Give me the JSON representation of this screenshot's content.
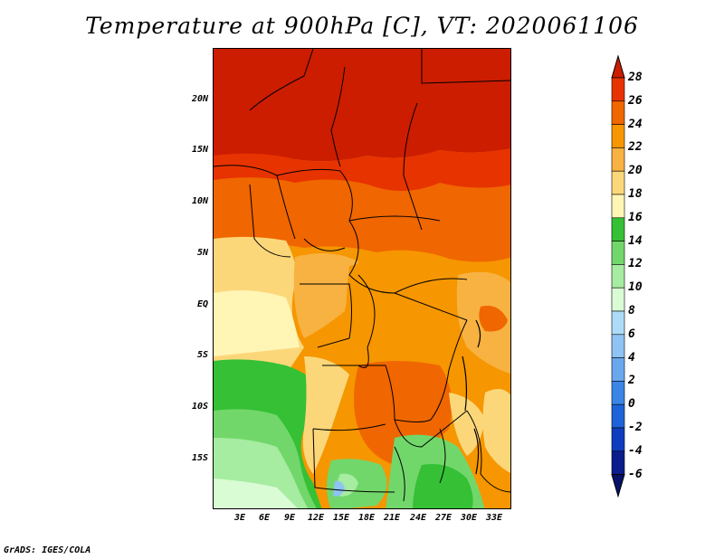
{
  "title": "Temperature at 900hPa [C], VT: 2020061106",
  "credit": "GrADS: IGES/COLA",
  "map": {
    "latitude_labels": [
      "20N",
      "15N",
      "10N",
      "5N",
      "EQ",
      "5S",
      "10S",
      "15S"
    ],
    "longitude_labels": [
      "3E",
      "6E",
      "9E",
      "12E",
      "15E",
      "18E",
      "21E",
      "24E",
      "27E",
      "30E",
      "33E"
    ]
  },
  "colorbar": {
    "labels": [
      "28",
      "26",
      "24",
      "22",
      "20",
      "18",
      "16",
      "14",
      "12",
      "10",
      "8",
      "6",
      "4",
      "2",
      "0",
      "-2",
      "-4",
      "-6"
    ],
    "colors": [
      "#cc1d00",
      "#e73300",
      "#f06600",
      "#f69600",
      "#f8b241",
      "#fcd77a",
      "#fff5b5",
      "#35c035",
      "#72d76a",
      "#a6ecA1",
      "#d9fcd4",
      "#aedcf8",
      "#8ec3f3",
      "#6aa8ee",
      "#3a86e6",
      "#1f63d8",
      "#0f3dbe",
      "#0a1d8c",
      "#061268"
    ]
  },
  "chart_data": {
    "type": "heatmap",
    "title": "Temperature at 900hPa [C], VT: 2020061106",
    "x_ticks": [
      "3E",
      "6E",
      "9E",
      "12E",
      "15E",
      "18E",
      "21E",
      "24E",
      "27E",
      "30E",
      "33E"
    ],
    "y_ticks": [
      "20N",
      "15N",
      "10N",
      "5N",
      "EQ",
      "5S",
      "10S",
      "15S"
    ],
    "units": "C",
    "color_scale_levels": [
      -6,
      -4,
      -2,
      0,
      2,
      4,
      6,
      8,
      10,
      12,
      14,
      16,
      18,
      20,
      22,
      24,
      26,
      28
    ]
  }
}
